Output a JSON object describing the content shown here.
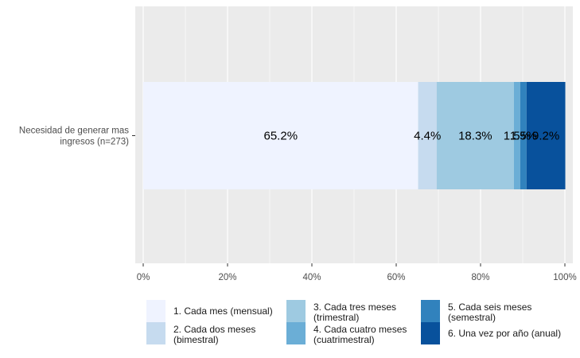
{
  "chart_data": {
    "type": "bar",
    "orientation": "horizontal",
    "stacked": true,
    "categories": [
      "Necesidad de generar mas ingresos (n=273)"
    ],
    "category_label_lines": [
      [
        "Necesidad de generar mas",
        "ingresos (n=273)"
      ]
    ],
    "series": [
      {
        "name": "1. Cada mes (mensual)",
        "name_lines": [
          "1. Cada mes (mensual)"
        ],
        "values": [
          65.2
        ],
        "label": "65.2%",
        "color": "#eff3ff"
      },
      {
        "name": "2. Cada dos meses (bimestral)",
        "name_lines": [
          "2. Cada dos meses",
          "(bimestral)"
        ],
        "values": [
          4.4
        ],
        "label": "4.4%",
        "color": "#c6dbef"
      },
      {
        "name": "3. Cada tres meses (trimestral)",
        "name_lines": [
          "3. Cada tres meses",
          "(trimestral)"
        ],
        "values": [
          18.3
        ],
        "label": "18.3%",
        "color": "#9ecae1"
      },
      {
        "name": "4. Cada cuatro meses (cuatrimestral)",
        "name_lines": [
          "4. Cada cuatro meses",
          "(cuatrimestral)"
        ],
        "values": [
          1.5
        ],
        "label": "1.5%",
        "color": "#6baed6"
      },
      {
        "name": "5. Cada seis meses (semestral)",
        "name_lines": [
          "5. Cada seis meses",
          "(semestral)"
        ],
        "values": [
          1.5
        ],
        "label": "1.5%",
        "color": "#3182bd"
      },
      {
        "name": "6. Una vez por año (anual)",
        "name_lines": [
          "6. Una vez por año (anual)"
        ],
        "values": [
          9.2
        ],
        "label": "9.2%",
        "color": "#08519c"
      }
    ],
    "xlim": [
      0,
      100
    ],
    "xticks": [
      0,
      20,
      40,
      60,
      80,
      100
    ],
    "xtick_labels": [
      "0%",
      "20%",
      "40%",
      "60%",
      "80%",
      "100%"
    ],
    "grid": true,
    "legend_position": "bottom",
    "panel_color": "#ebebeb",
    "grid_color": "#ffffff"
  }
}
